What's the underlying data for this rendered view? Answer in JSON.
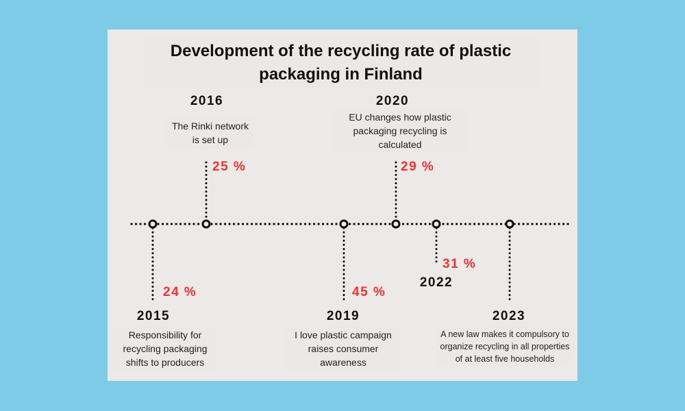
{
  "title": "Development of the recycling rate of plastic packaging in Finland",
  "colors": {
    "background": "#7ecbe8",
    "card": "#ece9e8",
    "percent": "#ee3333",
    "text": "#111111"
  },
  "events": [
    {
      "year": "2015",
      "percent": "24 %",
      "description": "Responsibility for recycling packaging shifts to producers"
    },
    {
      "year": "2016",
      "percent": "25 %",
      "description": "The Rinki network is set up"
    },
    {
      "year": "2019",
      "percent": "45 %",
      "description": "I love plastic campaign raises consumer awareness"
    },
    {
      "year": "2020",
      "percent": "29 %",
      "description": "EU changes how plastic packaging recycling is calculated"
    },
    {
      "year": "2022",
      "percent": "31 %",
      "description": ""
    },
    {
      "year": "2023",
      "percent": "",
      "description": "A new law makes it compulsory to organize recycling in all properties of at least five households"
    }
  ]
}
